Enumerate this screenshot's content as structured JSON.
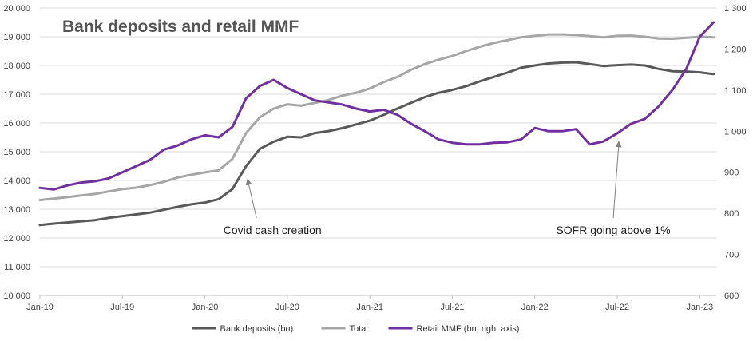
{
  "chart_data": {
    "type": "line",
    "title": "Bank deposits and retail MMF",
    "x_axis": {
      "tick_labels": [
        "Jan-19",
        "Jul-19",
        "Jan-20",
        "Jul-20",
        "Jan-21",
        "Jul-21",
        "Jan-22",
        "Jul-22",
        "Jan-23"
      ],
      "range": [
        "2019-01",
        "2023-02"
      ]
    },
    "y_left": {
      "min": 10000,
      "max": 20000,
      "step": 1000,
      "tick_labels": [
        "10 000",
        "11 000",
        "12 000",
        "13 000",
        "14 000",
        "15 000",
        "16 000",
        "17 000",
        "18 000",
        "19 000",
        "20 000"
      ]
    },
    "y_right": {
      "min": 600,
      "max": 1300,
      "step": 100,
      "tick_labels": [
        "600",
        "700",
        "800",
        "900",
        "1 000",
        "1 100",
        "1 200",
        "1 300"
      ]
    },
    "grid": "horizontal",
    "legend": {
      "position": "bottom",
      "entries": [
        "Bank deposits (bn)",
        "Total",
        "Retail MMF (bn, right axis)"
      ]
    },
    "series": [
      {
        "name": "Bank deposits (bn)",
        "axis": "left",
        "color": "#595959",
        "points": [
          [
            "2019-01",
            12450
          ],
          [
            "2019-02",
            12500
          ],
          [
            "2019-03",
            12540
          ],
          [
            "2019-04",
            12580
          ],
          [
            "2019-05",
            12620
          ],
          [
            "2019-06",
            12700
          ],
          [
            "2019-07",
            12760
          ],
          [
            "2019-08",
            12820
          ],
          [
            "2019-09",
            12880
          ],
          [
            "2019-10",
            12980
          ],
          [
            "2019-11",
            13080
          ],
          [
            "2019-12",
            13170
          ],
          [
            "2020-01",
            13230
          ],
          [
            "2020-02",
            13350
          ],
          [
            "2020-03",
            13700
          ],
          [
            "2020-04",
            14500
          ],
          [
            "2020-05",
            15100
          ],
          [
            "2020-06",
            15350
          ],
          [
            "2020-07",
            15520
          ],
          [
            "2020-08",
            15500
          ],
          [
            "2020-09",
            15650
          ],
          [
            "2020-10",
            15720
          ],
          [
            "2020-11",
            15820
          ],
          [
            "2020-12",
            15950
          ],
          [
            "2021-01",
            16080
          ],
          [
            "2021-02",
            16280
          ],
          [
            "2021-03",
            16500
          ],
          [
            "2021-04",
            16700
          ],
          [
            "2021-05",
            16900
          ],
          [
            "2021-06",
            17050
          ],
          [
            "2021-07",
            17150
          ],
          [
            "2021-08",
            17280
          ],
          [
            "2021-09",
            17450
          ],
          [
            "2021-10",
            17600
          ],
          [
            "2021-11",
            17750
          ],
          [
            "2021-12",
            17920
          ],
          [
            "2022-01",
            18000
          ],
          [
            "2022-02",
            18070
          ],
          [
            "2022-03",
            18100
          ],
          [
            "2022-04",
            18110
          ],
          [
            "2022-05",
            18050
          ],
          [
            "2022-06",
            17980
          ],
          [
            "2022-07",
            18010
          ],
          [
            "2022-08",
            18030
          ],
          [
            "2022-09",
            18000
          ],
          [
            "2022-10",
            17880
          ],
          [
            "2022-11",
            17800
          ],
          [
            "2022-12",
            17790
          ],
          [
            "2023-01",
            17760
          ],
          [
            "2023-02",
            17700
          ]
        ]
      },
      {
        "name": "Total",
        "axis": "left",
        "color": "#a6a6a6",
        "points": [
          [
            "2019-01",
            13320
          ],
          [
            "2019-02",
            13370
          ],
          [
            "2019-03",
            13420
          ],
          [
            "2019-04",
            13480
          ],
          [
            "2019-05",
            13530
          ],
          [
            "2019-06",
            13620
          ],
          [
            "2019-07",
            13700
          ],
          [
            "2019-08",
            13750
          ],
          [
            "2019-09",
            13840
          ],
          [
            "2019-10",
            13950
          ],
          [
            "2019-11",
            14100
          ],
          [
            "2019-12",
            14200
          ],
          [
            "2020-01",
            14280
          ],
          [
            "2020-02",
            14350
          ],
          [
            "2020-03",
            14750
          ],
          [
            "2020-04",
            15650
          ],
          [
            "2020-05",
            16200
          ],
          [
            "2020-06",
            16500
          ],
          [
            "2020-07",
            16650
          ],
          [
            "2020-08",
            16600
          ],
          [
            "2020-09",
            16700
          ],
          [
            "2020-10",
            16800
          ],
          [
            "2020-11",
            16950
          ],
          [
            "2020-12",
            17050
          ],
          [
            "2021-01",
            17200
          ],
          [
            "2021-02",
            17420
          ],
          [
            "2021-03",
            17600
          ],
          [
            "2021-04",
            17850
          ],
          [
            "2021-05",
            18050
          ],
          [
            "2021-06",
            18200
          ],
          [
            "2021-07",
            18330
          ],
          [
            "2021-08",
            18500
          ],
          [
            "2021-09",
            18650
          ],
          [
            "2021-10",
            18780
          ],
          [
            "2021-11",
            18880
          ],
          [
            "2021-12",
            18980
          ],
          [
            "2022-01",
            19030
          ],
          [
            "2022-02",
            19080
          ],
          [
            "2022-03",
            19080
          ],
          [
            "2022-04",
            19060
          ],
          [
            "2022-05",
            19020
          ],
          [
            "2022-06",
            18980
          ],
          [
            "2022-07",
            19030
          ],
          [
            "2022-08",
            19040
          ],
          [
            "2022-09",
            19000
          ],
          [
            "2022-10",
            18940
          ],
          [
            "2022-11",
            18930
          ],
          [
            "2022-12",
            18960
          ],
          [
            "2023-01",
            19000
          ],
          [
            "2023-02",
            18980
          ]
        ]
      },
      {
        "name": "Retail MMF (bn, right axis)",
        "axis": "right",
        "color": "#7030a0",
        "points": [
          [
            "2019-01",
            862
          ],
          [
            "2019-02",
            858
          ],
          [
            "2019-03",
            868
          ],
          [
            "2019-04",
            875
          ],
          [
            "2019-05",
            878
          ],
          [
            "2019-06",
            885
          ],
          [
            "2019-07",
            900
          ],
          [
            "2019-08",
            915
          ],
          [
            "2019-09",
            930
          ],
          [
            "2019-10",
            955
          ],
          [
            "2019-11",
            965
          ],
          [
            "2019-12",
            980
          ],
          [
            "2020-01",
            990
          ],
          [
            "2020-02",
            985
          ],
          [
            "2020-03",
            1010
          ],
          [
            "2020-04",
            1080
          ],
          [
            "2020-05",
            1110
          ],
          [
            "2020-06",
            1125
          ],
          [
            "2020-07",
            1105
          ],
          [
            "2020-08",
            1090
          ],
          [
            "2020-09",
            1075
          ],
          [
            "2020-10",
            1070
          ],
          [
            "2020-11",
            1065
          ],
          [
            "2020-12",
            1055
          ],
          [
            "2021-01",
            1048
          ],
          [
            "2021-02",
            1052
          ],
          [
            "2021-03",
            1040
          ],
          [
            "2021-04",
            1018
          ],
          [
            "2021-05",
            1000
          ],
          [
            "2021-06",
            980
          ],
          [
            "2021-07",
            972
          ],
          [
            "2021-08",
            968
          ],
          [
            "2021-09",
            968
          ],
          [
            "2021-10",
            972
          ],
          [
            "2021-11",
            973
          ],
          [
            "2021-12",
            980
          ],
          [
            "2022-01",
            1008
          ],
          [
            "2022-02",
            1000
          ],
          [
            "2022-03",
            1000
          ],
          [
            "2022-04",
            1005
          ],
          [
            "2022-05",
            968
          ],
          [
            "2022-06",
            975
          ],
          [
            "2022-07",
            995
          ],
          [
            "2022-08",
            1018
          ],
          [
            "2022-09",
            1030
          ],
          [
            "2022-10",
            1060
          ],
          [
            "2022-11",
            1100
          ],
          [
            "2022-12",
            1150
          ],
          [
            "2023-01",
            1230
          ],
          [
            "2023-02",
            1265
          ]
        ]
      }
    ],
    "annotations": [
      {
        "text": "Covid cash creation",
        "series": "Bank deposits (bn)",
        "points_to": [
          "2020-04",
          14400
        ]
      },
      {
        "text": "SOFR going above 1%",
        "series": "Retail MMF (bn, right axis)",
        "points_to": [
          "2022-07",
          1000
        ]
      }
    ]
  }
}
